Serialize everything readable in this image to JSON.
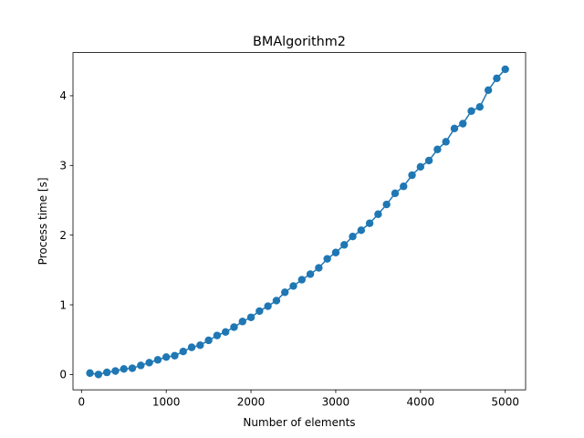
{
  "chart_data": {
    "type": "line",
    "title": "BMAlgorithm2",
    "xlabel": "Number of elements",
    "ylabel": "Process time [s]",
    "xlim": [
      -100,
      5240
    ],
    "ylim": [
      -0.22,
      4.62
    ],
    "xticks": [
      0,
      1000,
      2000,
      3000,
      4000,
      5000
    ],
    "yticks": [
      0,
      1,
      2,
      3,
      4
    ],
    "grid": false,
    "legend": "none",
    "series_color": "#1f77b4",
    "marker": "circle",
    "series": [
      {
        "x": [
          100,
          200,
          300,
          400,
          500,
          600,
          700,
          800,
          900,
          1000,
          1100,
          1200,
          1300,
          1400,
          1500,
          1600,
          1700,
          1800,
          1900,
          2000,
          2100,
          2200,
          2300,
          2400,
          2500,
          2600,
          2700,
          2800,
          2900,
          3000,
          3100,
          3200,
          3300,
          3400,
          3500,
          3600,
          3700,
          3800,
          3900,
          4000,
          4100,
          4200,
          4300,
          4400,
          4500,
          4600,
          4700,
          4800,
          4900,
          5000
        ],
        "values": [
          0.02,
          0.0,
          0.03,
          0.05,
          0.08,
          0.09,
          0.13,
          0.17,
          0.21,
          0.25,
          0.27,
          0.33,
          0.39,
          0.42,
          0.49,
          0.56,
          0.61,
          0.68,
          0.76,
          0.82,
          0.91,
          0.98,
          1.06,
          1.18,
          1.27,
          1.36,
          1.44,
          1.53,
          1.66,
          1.75,
          1.86,
          1.98,
          2.07,
          2.17,
          2.3,
          2.44,
          2.6,
          2.7,
          2.86,
          2.98,
          3.07,
          3.23,
          3.34,
          3.53,
          3.6,
          3.78,
          3.84,
          4.08,
          4.25,
          4.38
        ]
      }
    ]
  }
}
